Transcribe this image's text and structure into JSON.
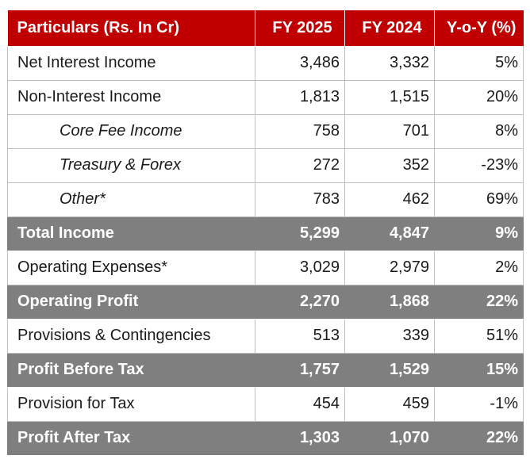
{
  "table": {
    "headers": [
      "Particulars (Rs. In Cr)",
      "FY 2025",
      "FY 2024",
      "Y-o-Y (%)"
    ],
    "rows": [
      {
        "label": "Net Interest Income",
        "fy2025": "3,486",
        "fy2024": "3,332",
        "yoy": "5%",
        "style": "normal"
      },
      {
        "label": "Non-Interest Income",
        "fy2025": "1,813",
        "fy2024": "1,515",
        "yoy": "20%",
        "style": "normal"
      },
      {
        "label": "Core Fee Income",
        "fy2025": "758",
        "fy2024": "701",
        "yoy": "8%",
        "style": "sub"
      },
      {
        "label": "Treasury & Forex",
        "fy2025": "272",
        "fy2024": "352",
        "yoy": "-23%",
        "style": "sub"
      },
      {
        "label": "Other*",
        "fy2025": "783",
        "fy2024": "462",
        "yoy": "69%",
        "style": "sub"
      },
      {
        "label": "Total Income",
        "fy2025": "5,299",
        "fy2024": "4,847",
        "yoy": "9%",
        "style": "total"
      },
      {
        "label": "Operating Expenses*",
        "fy2025": "3,029",
        "fy2024": "2,979",
        "yoy": "2%",
        "style": "normal"
      },
      {
        "label": "Operating Profit",
        "fy2025": "2,270",
        "fy2024": "1,868",
        "yoy": "22%",
        "style": "total"
      },
      {
        "label": "Provisions & Contingencies",
        "fy2025": "513",
        "fy2024": "339",
        "yoy": "51%",
        "style": "normal"
      },
      {
        "label": "Profit Before Tax",
        "fy2025": "1,757",
        "fy2024": "1,529",
        "yoy": "15%",
        "style": "total"
      },
      {
        "label": "Provision for Tax",
        "fy2025": "454",
        "fy2024": "459",
        "yoy": "-1%",
        "style": "normal"
      },
      {
        "label": "Profit After Tax",
        "fy2025": "1,303",
        "fy2024": "1,070",
        "yoy": "22%",
        "style": "total"
      }
    ]
  },
  "colors": {
    "header_bg": "#c00000",
    "header_text": "#ffffff",
    "total_bg": "#7f7f7f",
    "total_text": "#ffffff",
    "grid": "#bfbfbf"
  }
}
